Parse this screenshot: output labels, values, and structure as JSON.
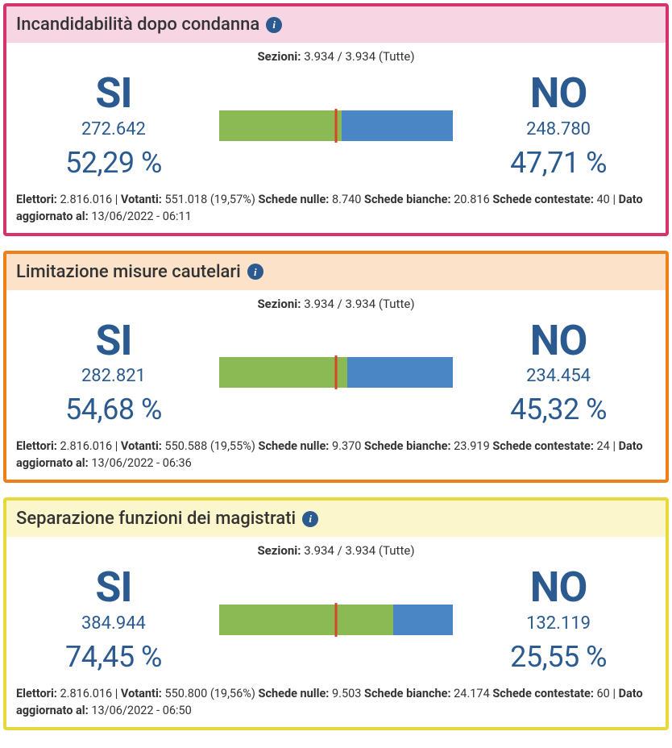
{
  "labels": {
    "sezioni": "Sezioni:",
    "si": "SI",
    "no": "NO",
    "elettori": "Elettori:",
    "votanti": "Votanti:",
    "schede_nulle": "Schede nulle:",
    "schede_bianche": "Schede bianche:",
    "schede_contestate": "Schede contestate:",
    "dato_aggiornato": "Dato aggiornato al:"
  },
  "cards": [
    {
      "title": "Incandidabilità dopo condanna",
      "border_color": "#d6336c",
      "header_bg": "#f7d5e3",
      "info_bg": "#2a5a8f",
      "sezioni": "3.934 / 3.934 (Tutte)",
      "si_count": "272.642",
      "si_pct": "52,29 %",
      "si_pct_num": 52.29,
      "no_count": "248.780",
      "no_pct": "47,71 %",
      "no_pct_num": 47.71,
      "bar_si_color": "#8bb954",
      "bar_no_color": "#4a86c5",
      "marker_color": "#d9442a",
      "elettori": "2.816.016",
      "votanti": "551.018 (19,57%)",
      "schede_nulle": "8.740",
      "schede_bianche": "20.816",
      "schede_contestate": "40",
      "dato_aggiornato": "13/06/2022 - 06:11"
    },
    {
      "title": "Limitazione misure cautelari",
      "border_color": "#ef7f1a",
      "header_bg": "#fce2c9",
      "info_bg": "#2a5a8f",
      "sezioni": "3.934 / 3.934 (Tutte)",
      "si_count": "282.821",
      "si_pct": "54,68 %",
      "si_pct_num": 54.68,
      "no_count": "234.454",
      "no_pct": "45,32 %",
      "no_pct_num": 45.32,
      "bar_si_color": "#8bb954",
      "bar_no_color": "#4a86c5",
      "marker_color": "#d9442a",
      "elettori": "2.816.016",
      "votanti": "550.588 (19,55%)",
      "schede_nulle": "9.370",
      "schede_bianche": "23.919",
      "schede_contestate": "24",
      "dato_aggiornato": "13/06/2022 - 06:36"
    },
    {
      "title": "Separazione funzioni dei magistrati",
      "border_color": "#e8d93a",
      "header_bg": "#fbf6cc",
      "info_bg": "#2a5a8f",
      "sezioni": "3.934 / 3.934 (Tutte)",
      "si_count": "384.944",
      "si_pct": "74,45 %",
      "si_pct_num": 74.45,
      "no_count": "132.119",
      "no_pct": "25,55 %",
      "no_pct_num": 25.55,
      "bar_si_color": "#8bb954",
      "bar_no_color": "#4a86c5",
      "marker_color": "#d9442a",
      "elettori": "2.816.016",
      "votanti": "550.800 (19,56%)",
      "schede_nulle": "9.503",
      "schede_bianche": "24.174",
      "schede_contestate": "60",
      "dato_aggiornato": "13/06/2022 - 06:50"
    }
  ]
}
